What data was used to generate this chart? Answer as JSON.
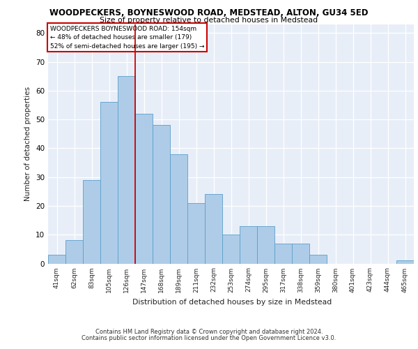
{
  "title": "WOODPECKERS, BOYNESWOOD ROAD, MEDSTEAD, ALTON, GU34 5ED",
  "subtitle": "Size of property relative to detached houses in Medstead",
  "xlabel": "Distribution of detached houses by size in Medstead",
  "ylabel": "Number of detached properties",
  "categories": [
    "41sqm",
    "62sqm",
    "83sqm",
    "105sqm",
    "126sqm",
    "147sqm",
    "168sqm",
    "189sqm",
    "211sqm",
    "232sqm",
    "253sqm",
    "274sqm",
    "295sqm",
    "317sqm",
    "338sqm",
    "359sqm",
    "380sqm",
    "401sqm",
    "423sqm",
    "444sqm",
    "465sqm"
  ],
  "values": [
    3,
    8,
    29,
    56,
    65,
    52,
    48,
    38,
    21,
    24,
    10,
    13,
    13,
    7,
    7,
    3,
    0,
    0,
    0,
    0,
    1
  ],
  "bar_color": "#aecce8",
  "bar_edge_color": "#5a9fc9",
  "marker_line_color": "#cc0000",
  "annotation_line1": "WOODPECKERS BOYNESWOOD ROAD: 154sqm",
  "annotation_line2": "← 48% of detached houses are smaller (179)",
  "annotation_line3": "52% of semi-detached houses are larger (195) →",
  "annotation_box_edge": "#cc0000",
  "ylim": [
    0,
    83
  ],
  "yticks": [
    0,
    10,
    20,
    30,
    40,
    50,
    60,
    70,
    80
  ],
  "bg_color": "#e8eef8",
  "footer1": "Contains HM Land Registry data © Crown copyright and database right 2024.",
  "footer2": "Contains public sector information licensed under the Open Government Licence v3.0."
}
